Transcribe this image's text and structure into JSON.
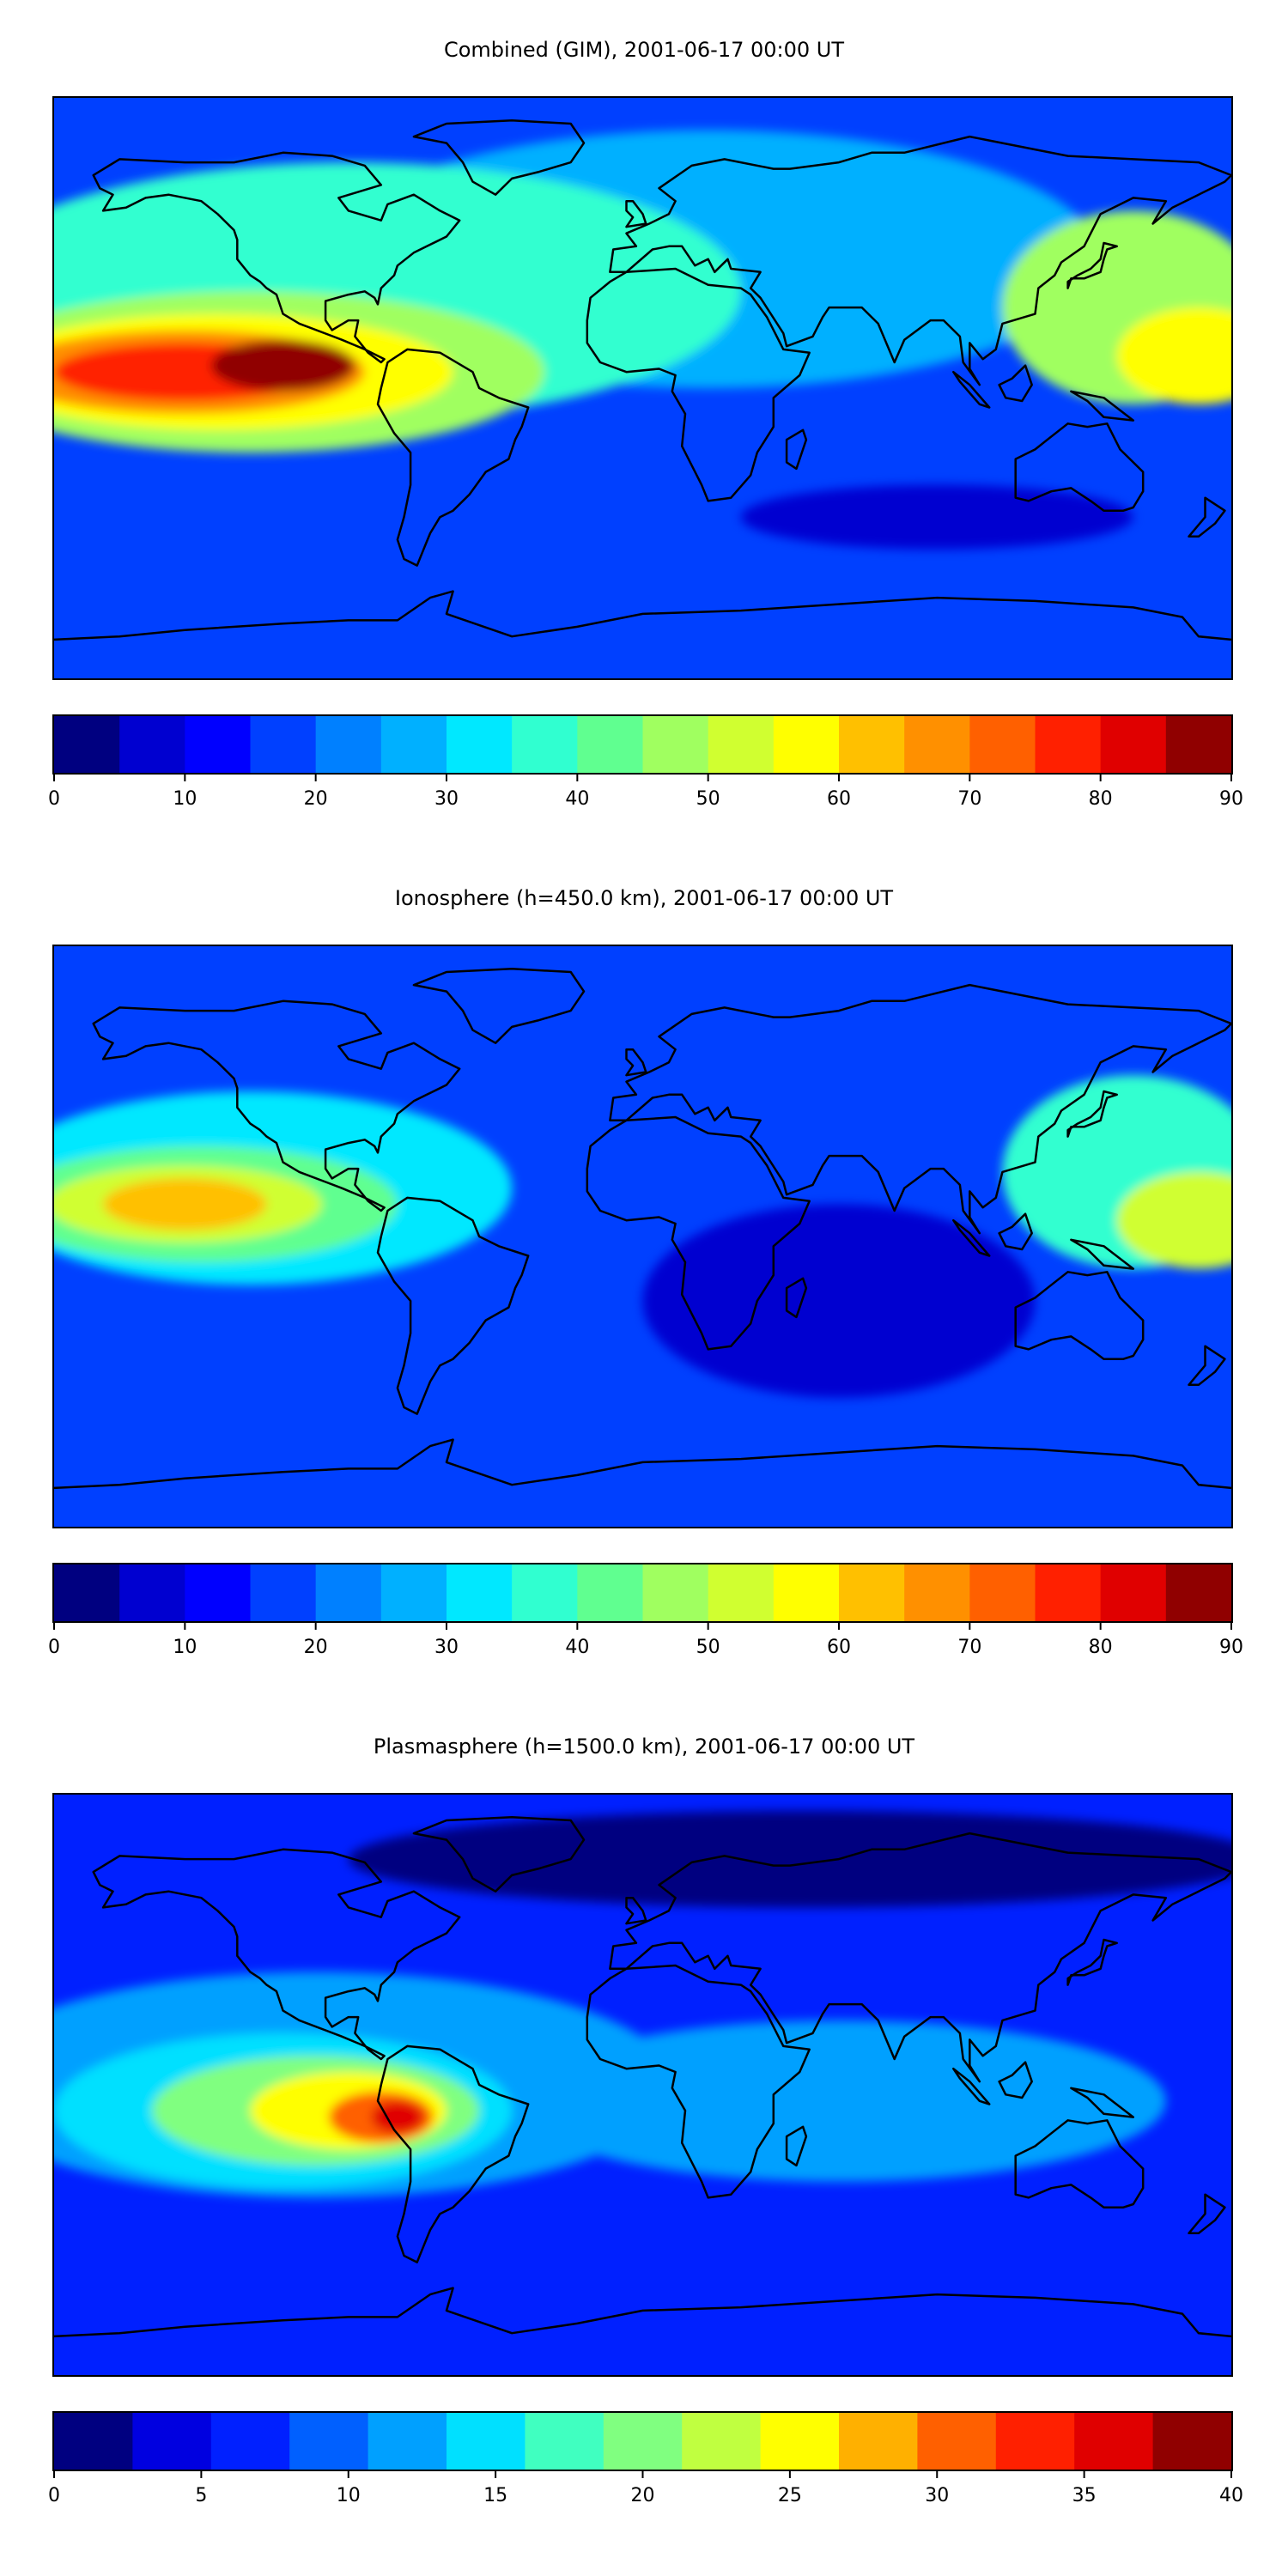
{
  "chart_data": [
    {
      "type": "heatmap",
      "title": "Combined (GIM), 2001-06-17 00:00 UT",
      "cbar_ticks": [
        0,
        10,
        20,
        30,
        40,
        50,
        60,
        70,
        80,
        90
      ],
      "cbar_colors": [
        "#000080",
        "#0000d0",
        "#0000ff",
        "#0040ff",
        "#0080ff",
        "#00b0ff",
        "#00e8ff",
        "#30ffd0",
        "#60ff90",
        "#a0ff60",
        "#d0ff30",
        "#ffff00",
        "#ffc000",
        "#ff9000",
        "#ff6000",
        "#ff2000",
        "#e00000",
        "#900000"
      ],
      "vmin": 0,
      "vmax": 90,
      "background_level": 3,
      "blobs": [
        {
          "lon": -140,
          "lat": 5,
          "rx": 40,
          "ry": 9,
          "level": 15
        },
        {
          "lon": -110,
          "lat": 7,
          "rx": 22,
          "ry": 8,
          "level": 17
        },
        {
          "lon": -140,
          "lat": 5,
          "rx": 55,
          "ry": 13,
          "level": 13
        },
        {
          "lon": -130,
          "lat": 5,
          "rx": 72,
          "ry": 18,
          "level": 11
        },
        {
          "lon": -120,
          "lat": 5,
          "rx": 90,
          "ry": 25,
          "level": 9
        },
        {
          "lon": -90,
          "lat": 30,
          "rx": 120,
          "ry": 40,
          "level": 7
        },
        {
          "lon": 170,
          "lat": 10,
          "rx": 25,
          "ry": 15,
          "level": 11
        },
        {
          "lon": 150,
          "lat": 25,
          "rx": 40,
          "ry": 30,
          "level": 9
        },
        {
          "lon": 20,
          "lat": 40,
          "rx": 120,
          "ry": 40,
          "level": 5
        },
        {
          "lon": 90,
          "lat": -40,
          "rx": 60,
          "ry": 10,
          "level": 1
        }
      ]
    },
    {
      "type": "heatmap",
      "title": "Ionosphere  (h=450.0 km), 2001-06-17 00:00 UT",
      "cbar_ticks": [
        0,
        10,
        20,
        30,
        40,
        50,
        60,
        70,
        80,
        90
      ],
      "cbar_colors": [
        "#000080",
        "#0000d0",
        "#0000ff",
        "#0040ff",
        "#0080ff",
        "#00b0ff",
        "#00e8ff",
        "#30ffd0",
        "#60ff90",
        "#a0ff60",
        "#d0ff30",
        "#ffff00",
        "#ffc000",
        "#ff9000",
        "#ff6000",
        "#ff2000",
        "#e00000",
        "#900000"
      ],
      "vmin": 0,
      "vmax": 90,
      "background_level": 3,
      "blobs": [
        {
          "lon": -140,
          "lat": 10,
          "rx": 25,
          "ry": 8,
          "level": 12
        },
        {
          "lon": -140,
          "lat": 10,
          "rx": 42,
          "ry": 12,
          "level": 10
        },
        {
          "lon": -135,
          "lat": 10,
          "rx": 60,
          "ry": 18,
          "level": 8
        },
        {
          "lon": -120,
          "lat": 15,
          "rx": 80,
          "ry": 30,
          "level": 6
        },
        {
          "lon": 170,
          "lat": 5,
          "rx": 25,
          "ry": 15,
          "level": 10
        },
        {
          "lon": 150,
          "lat": 20,
          "rx": 40,
          "ry": 30,
          "level": 7
        },
        {
          "lon": 60,
          "lat": -20,
          "rx": 60,
          "ry": 30,
          "level": 1
        }
      ]
    },
    {
      "type": "heatmap",
      "title": "Plasmasphere (h=1500.0 km), 2001-06-17 00:00 UT",
      "cbar_ticks": [
        0,
        5,
        10,
        15,
        20,
        25,
        30,
        35,
        40
      ],
      "cbar_colors": [
        "#000080",
        "#0000e0",
        "#0020ff",
        "#0060ff",
        "#00a0ff",
        "#00e0ff",
        "#40ffc0",
        "#80ff80",
        "#c0ff40",
        "#ffff00",
        "#ffb000",
        "#ff6000",
        "#ff2000",
        "#e00000",
        "#900000"
      ],
      "vmin": 0,
      "vmax": 40,
      "background_level": 2,
      "blobs": [
        {
          "lon": -75,
          "lat": -10,
          "rx": 8,
          "ry": 5,
          "level": 13
        },
        {
          "lon": -80,
          "lat": -10,
          "rx": 16,
          "ry": 8,
          "level": 11
        },
        {
          "lon": -90,
          "lat": -8,
          "rx": 30,
          "ry": 12,
          "level": 9
        },
        {
          "lon": -100,
          "lat": -8,
          "rx": 50,
          "ry": 17,
          "level": 7
        },
        {
          "lon": -110,
          "lat": -8,
          "rx": 70,
          "ry": 24,
          "level": 5
        },
        {
          "lon": -100,
          "lat": 0,
          "rx": 110,
          "ry": 35,
          "level": 4
        },
        {
          "lon": 60,
          "lat": -5,
          "rx": 100,
          "ry": 25,
          "level": 4
        },
        {
          "lon": 50,
          "lat": 70,
          "rx": 140,
          "ry": 15,
          "level": 0
        }
      ]
    }
  ]
}
